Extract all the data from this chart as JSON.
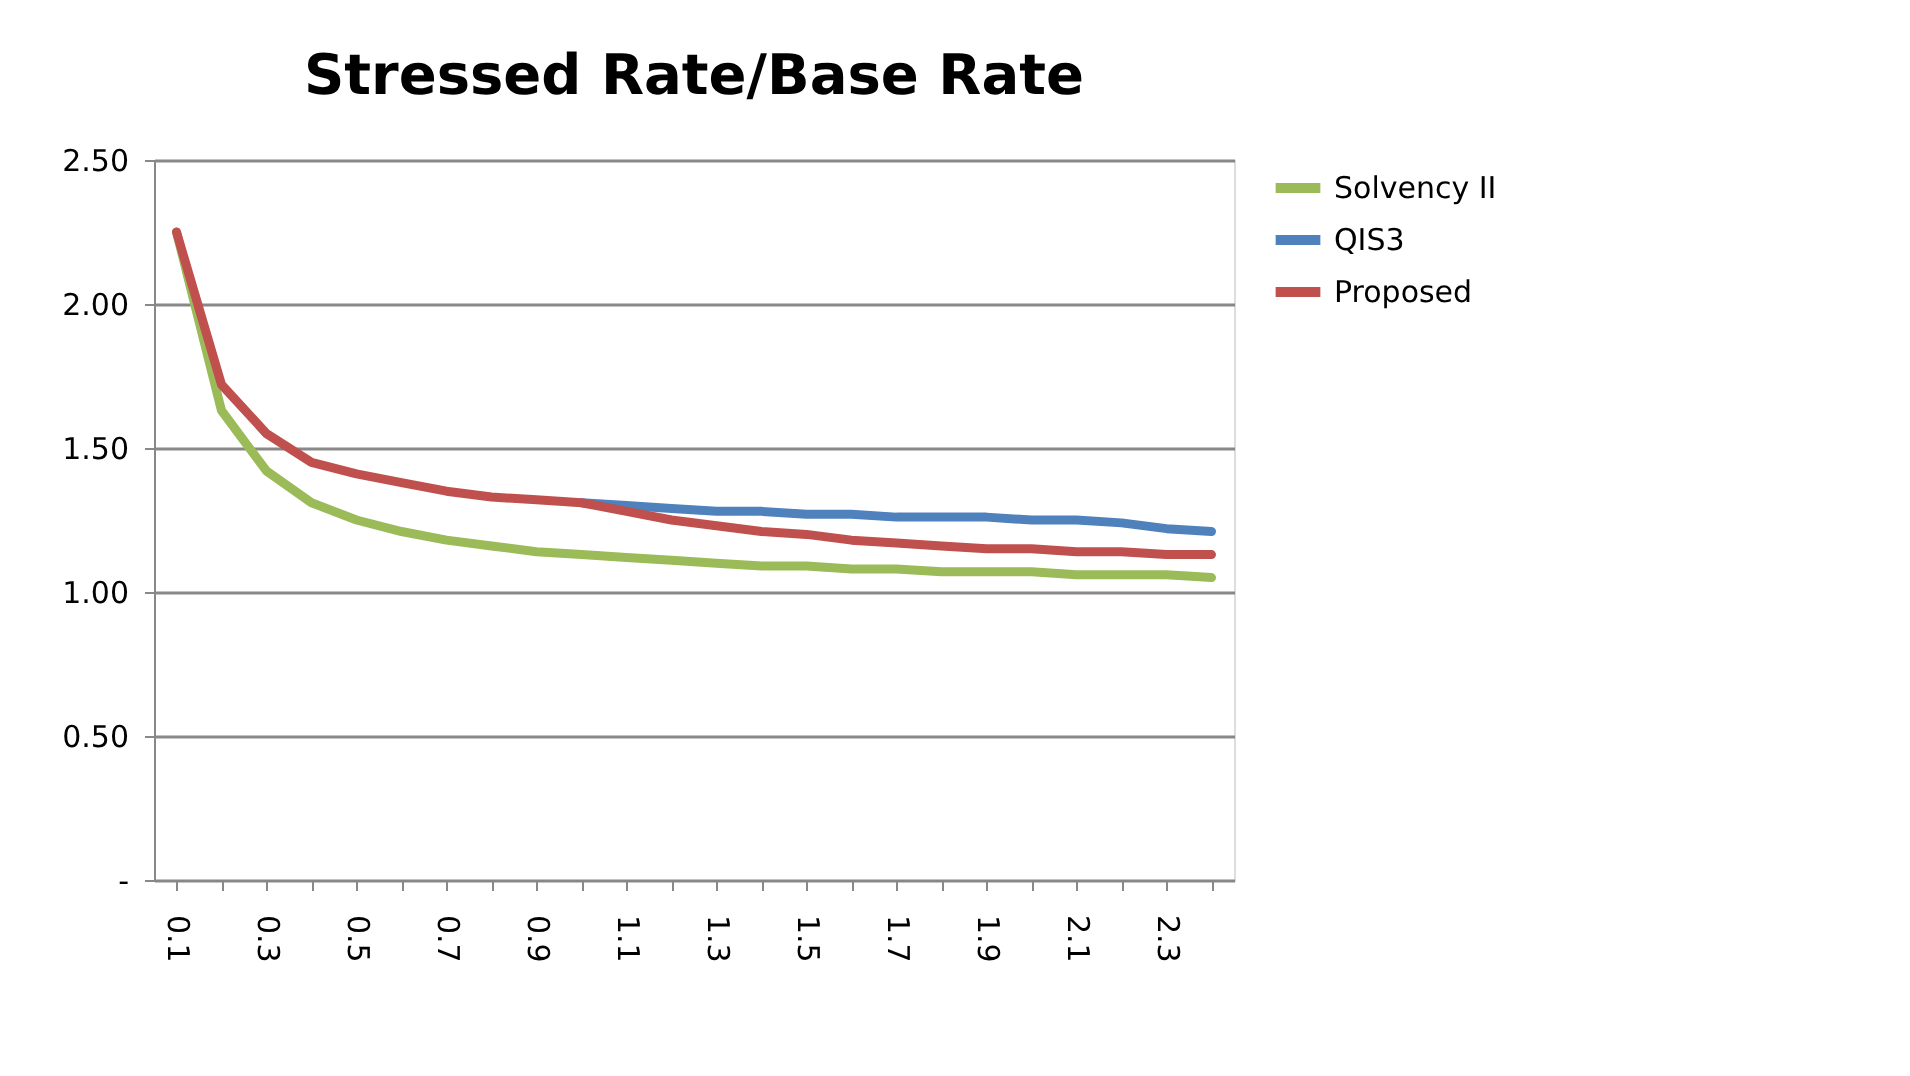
{
  "chart_data": {
    "type": "line",
    "title": "Stressed Rate/Base Rate",
    "categories": [
      "0.1",
      null,
      "0.3",
      null,
      "0.5",
      null,
      "0.7",
      null,
      "0.9",
      null,
      "1.1",
      null,
      "1.3",
      null,
      "1.5",
      null,
      "1.7",
      null,
      "1.9",
      null,
      "2.1",
      null,
      "2.3",
      null
    ],
    "series": [
      {
        "name": "Solvency II",
        "color": "#9bbb59",
        "values": [
          2.25,
          1.63,
          1.42,
          1.31,
          1.25,
          1.21,
          1.18,
          1.16,
          1.14,
          1.13,
          1.12,
          1.11,
          1.1,
          1.09,
          1.09,
          1.08,
          1.08,
          1.07,
          1.07,
          1.07,
          1.06,
          1.06,
          1.06,
          1.05
        ]
      },
      {
        "name": "QIS3",
        "color": "#4f81bd",
        "values": [
          null,
          null,
          null,
          null,
          null,
          null,
          null,
          null,
          null,
          1.31,
          1.3,
          1.29,
          1.28,
          1.28,
          1.27,
          1.27,
          1.26,
          1.26,
          1.26,
          1.25,
          1.25,
          1.24,
          1.22,
          1.21
        ]
      },
      {
        "name": "Proposed",
        "color": "#c0504d",
        "values": [
          2.25,
          1.72,
          1.55,
          1.45,
          1.41,
          1.38,
          1.35,
          1.33,
          1.32,
          1.31,
          1.28,
          1.25,
          1.23,
          1.21,
          1.2,
          1.18,
          1.17,
          1.16,
          1.15,
          1.15,
          1.14,
          1.14,
          1.13,
          1.13
        ]
      }
    ],
    "ylim": [
      0,
      2.5
    ],
    "yticks": [
      {
        "value": 0,
        "label": "-"
      },
      {
        "value": 0.5,
        "label": "0.50"
      },
      {
        "value": 1,
        "label": "1.00"
      },
      {
        "value": 1.5,
        "label": "1.50"
      },
      {
        "value": 2,
        "label": "2.00"
      },
      {
        "value": 2.5,
        "label": "2.50"
      }
    ],
    "grid": "y",
    "legend": "right",
    "marker": "none",
    "line_style": "solid"
  }
}
